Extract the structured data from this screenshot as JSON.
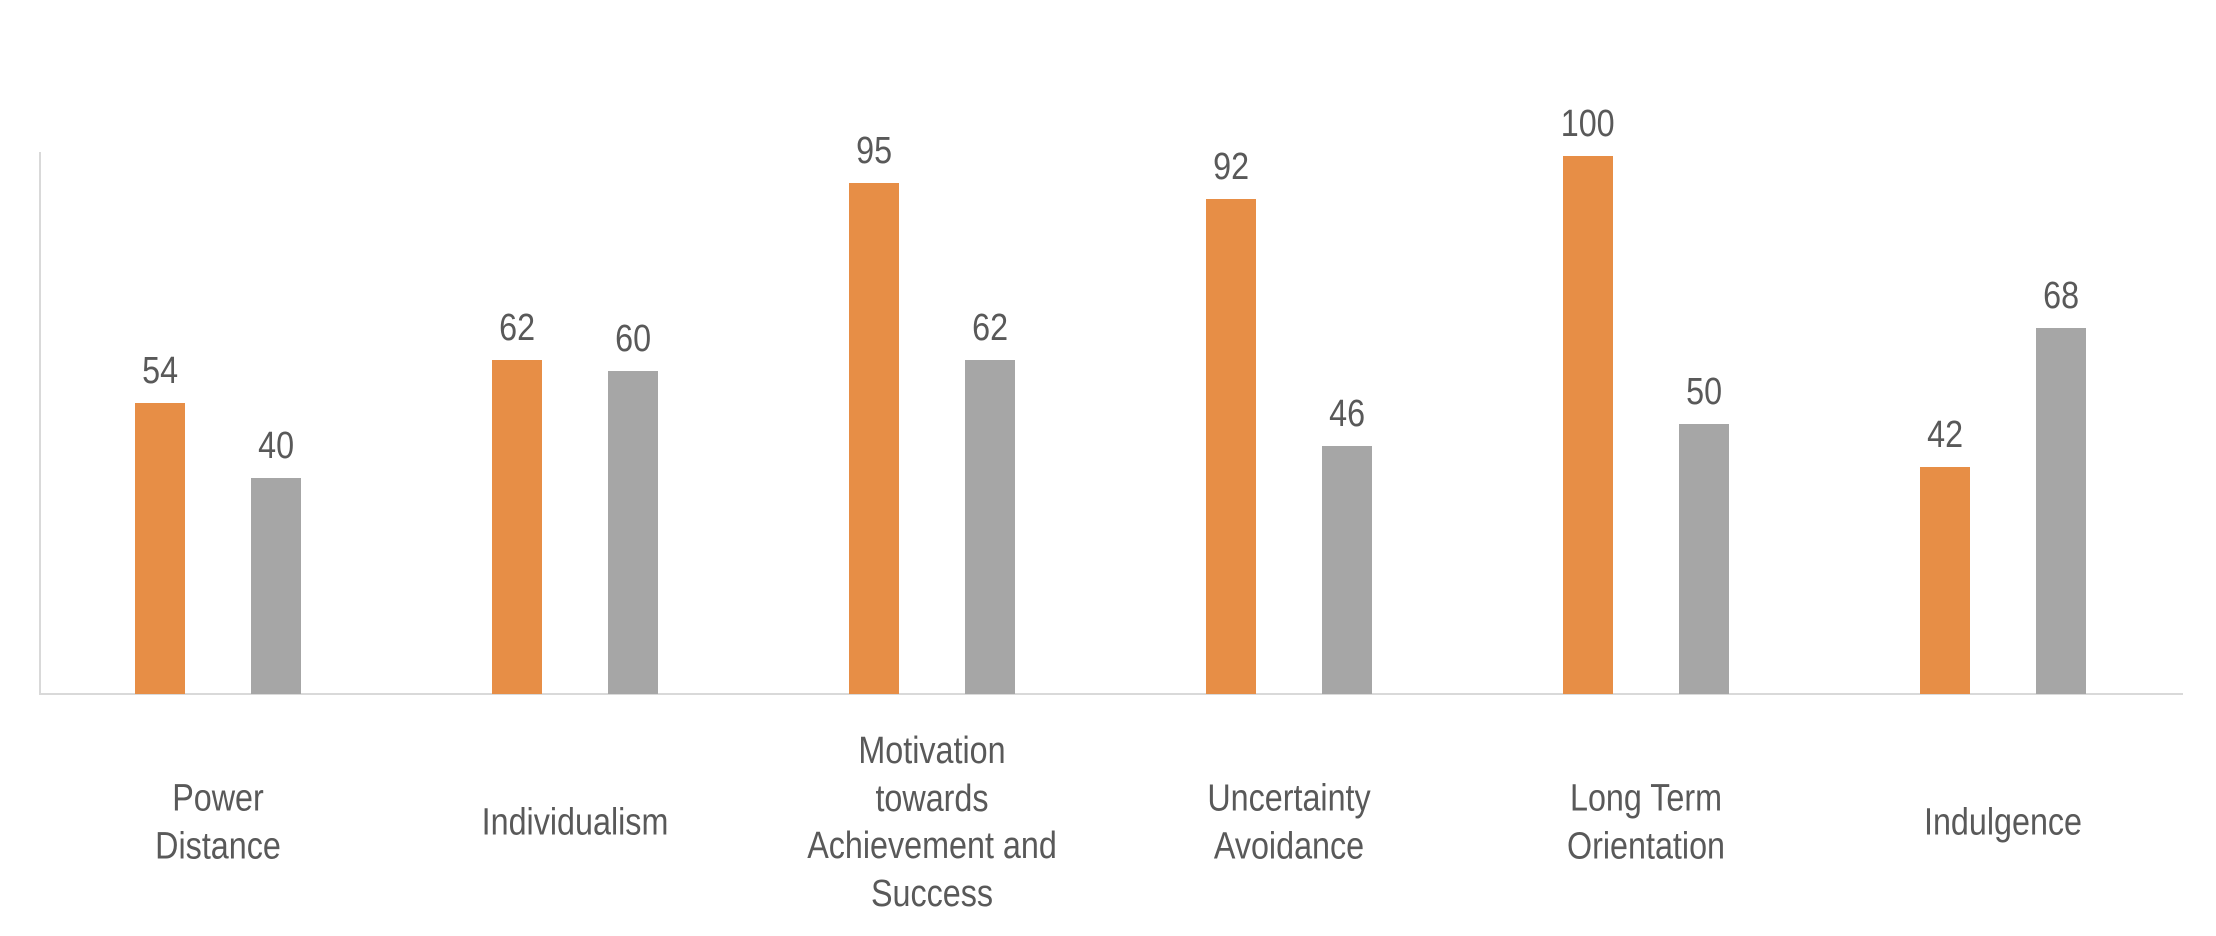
{
  "chart_data": {
    "type": "bar",
    "title": "",
    "categories": [
      "Power Distance",
      "Individualism",
      "Motivation towards Achievement and Success",
      "Uncertainty Avoidance",
      "Long Term Orientation",
      "Indulgence"
    ],
    "category_label_lines": [
      [
        "Power",
        "Distance"
      ],
      [
        "Individualism"
      ],
      [
        "Motivation",
        "towards",
        "Achievement and",
        "Success"
      ],
      [
        "Uncertainty",
        "Avoidance"
      ],
      [
        "Long Term",
        "Orientation"
      ],
      [
        "Indulgence"
      ]
    ],
    "series": [
      {
        "name": "orange",
        "color": "#E78E46",
        "values": [
          54,
          62,
          95,
          92,
          100,
          42
        ]
      },
      {
        "name": "gray",
        "color": "#A6A6A6",
        "values": [
          40,
          60,
          62,
          46,
          50,
          68
        ]
      }
    ],
    "data_labels": [
      [
        "54",
        "62",
        "95",
        "92",
        "100",
        "42"
      ],
      [
        "40",
        "60",
        "62",
        "46",
        "50",
        "68"
      ]
    ],
    "ylim": [
      0,
      100
    ],
    "grid": false,
    "legend": "none",
    "data_labels_visible": true,
    "axis_color": "#D9D9D9",
    "label_color": "#595959",
    "background_color": "#FFFFFF"
  }
}
